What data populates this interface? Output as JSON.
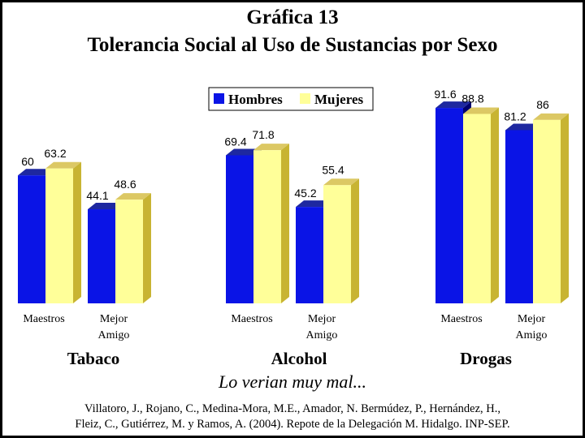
{
  "title": "Gráfica 13",
  "subtitle": "Tolerancia Social al Uso de Sustancias por Sexo",
  "note": "Lo verian muy mal...",
  "citation": {
    "line1": "Villatoro, J., Rojano, C., Medina-Mora, M.E., Amador, N. Bermúdez, P., Hernández, H.,",
    "line2": "Fleiz, C., Gutiérrez, M. y Ramos, A. (2004). Repote de la Delegación M. Hidalgo. INP-SEP."
  },
  "colors": {
    "hombres": "#0a14e6",
    "mujeres": "#ffff99"
  },
  "chart_data": {
    "type": "bar",
    "groups": [
      "Tabaco",
      "Alcohol",
      "Drogas"
    ],
    "categories": [
      {
        "group": "Tabaco",
        "line1": "Maestros",
        "line2": ""
      },
      {
        "group": "Tabaco",
        "line1": "Mejor",
        "line2": "Amigo"
      },
      {
        "group": "Alcohol",
        "line1": "Maestros",
        "line2": ""
      },
      {
        "group": "Alcohol",
        "line1": "Mejor",
        "line2": "Amigo"
      },
      {
        "group": "Drogas",
        "line1": "Maestros",
        "line2": ""
      },
      {
        "group": "Drogas",
        "line1": "Mejor",
        "line2": "Amigo"
      }
    ],
    "series": [
      {
        "name": "Hombres",
        "values": [
          60,
          44.1,
          69.4,
          45.2,
          91.6,
          81.2
        ],
        "labels": [
          "60",
          "44.1",
          "69.4",
          "45.2",
          "91.6",
          "81.2"
        ]
      },
      {
        "name": "Mujeres",
        "values": [
          63.2,
          48.6,
          71.8,
          55.4,
          88.8,
          86
        ],
        "labels": [
          "63.2",
          "48.6",
          "71.8",
          "55.4",
          "88.8",
          "86"
        ]
      }
    ],
    "ylim": [
      0,
      100
    ],
    "legend": "top-center",
    "grid": false
  }
}
